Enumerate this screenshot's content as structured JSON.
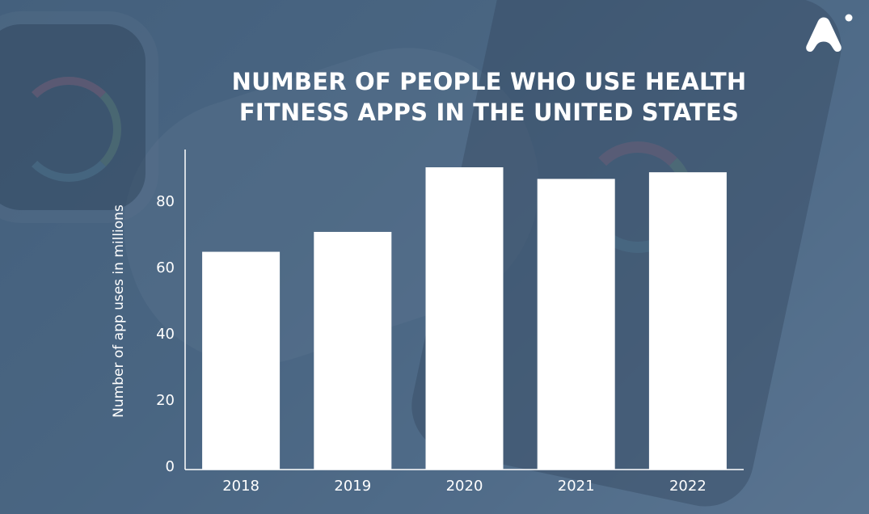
{
  "title_line1": "NUMBER OF PEOPLE WHO USE HEALTH",
  "title_line2": "FITNESS APPS IN THE UNITED STATES",
  "brand_icon": "stylized-a-logo-icon",
  "colors": {
    "bar": "#ffffff",
    "axis": "#ffffff",
    "text": "#ffffff"
  },
  "chart_data": {
    "type": "bar",
    "categories": [
      "2018",
      "2019",
      "2020",
      "2021",
      "2022"
    ],
    "values": [
      64.5,
      70.5,
      90,
      86.5,
      88.5
    ],
    "title": "NUMBER OF PEOPLE WHO USE HEALTH FITNESS APPS IN THE UNITED STATES",
    "xlabel": "",
    "ylabel": "Number of app uses in millions",
    "ylim": [
      0,
      95
    ],
    "yticks": [
      "0",
      "20",
      "40",
      "60",
      "80"
    ],
    "grid": false,
    "legend": "none"
  }
}
